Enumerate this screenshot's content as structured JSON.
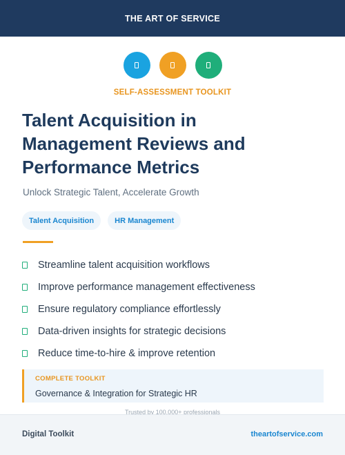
{
  "header": {
    "brand": "THE ART OF SERVICE"
  },
  "icons": [
    {
      "name": "blue-circle-icon",
      "color": "#1aa3e0"
    },
    {
      "name": "orange-circle-icon",
      "color": "#f0a024"
    },
    {
      "name": "green-circle-icon",
      "color": "#1fae7a"
    }
  ],
  "kicker": "SELF-ASSESSMENT TOOLKIT",
  "title": {
    "line1": "Talent Acquisition in",
    "line2": "Management Reviews and",
    "line3": "Performance Metrics"
  },
  "subtitle": "Unlock Strategic Talent, Accelerate Growth",
  "tags": [
    "Talent Acquisition",
    "HR Management"
  ],
  "bullets": [
    "Streamline talent acquisition workflows",
    "Improve performance management effectiveness",
    "Ensure regulatory compliance effortlessly",
    "Data-driven insights for strategic decisions",
    "Reduce time-to-hire & improve retention"
  ],
  "panel": {
    "kicker": "COMPLETE TOOLKIT",
    "text": "Governance & Integration for Strategic HR"
  },
  "trusted": "Trusted by 100,000+ professionals",
  "footer": {
    "left": "Digital Toolkit",
    "right": "theartofservice.com"
  },
  "colors": {
    "navy": "#1f3a5f",
    "orange": "#f0a024",
    "blue": "#1aa3e0",
    "green": "#1fae7a"
  }
}
